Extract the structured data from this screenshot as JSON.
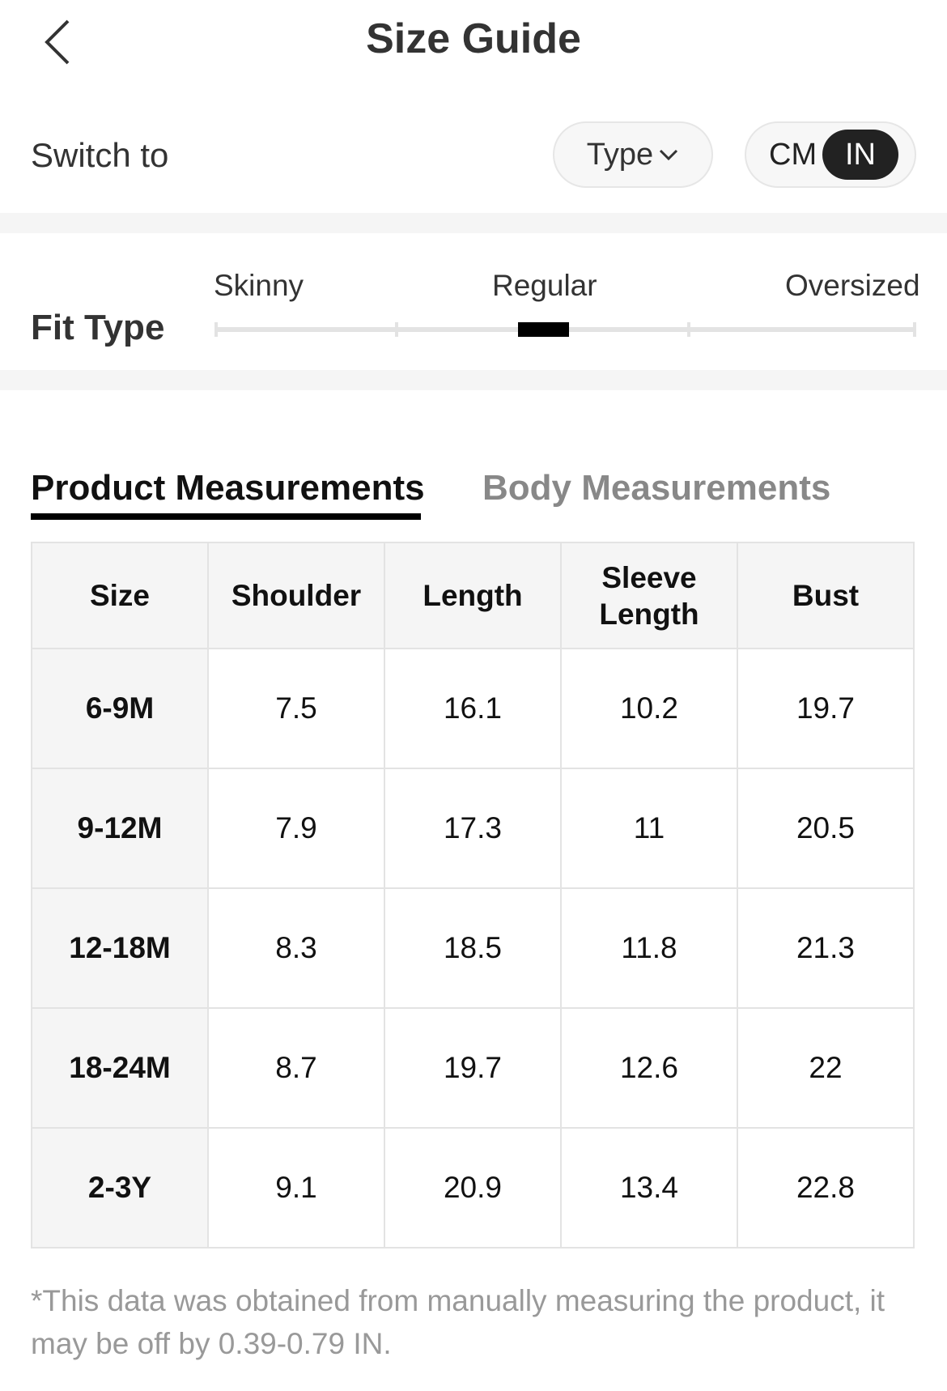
{
  "header": {
    "title": "Size Guide",
    "back_icon": "chevron-left-icon"
  },
  "switch": {
    "label": "Switch to",
    "type_label": "Type",
    "type_icon": "chevron-down-icon",
    "unit_options": [
      "CM",
      "IN"
    ],
    "unit_selected": "IN"
  },
  "fit": {
    "label": "Fit Type",
    "options": [
      "Skinny",
      "Regular",
      "Oversized"
    ],
    "selected": "Regular"
  },
  "tabs": [
    {
      "label": "Product Measurements",
      "active": true
    },
    {
      "label": "Body Measurements",
      "active": false
    }
  ],
  "table": {
    "headers": [
      "Size",
      "Shoulder",
      "Length",
      "Sleeve Length",
      "Bust"
    ],
    "rows": [
      [
        "6-9M",
        "7.5",
        "16.1",
        "10.2",
        "19.7"
      ],
      [
        "9-12M",
        "7.9",
        "17.3",
        "11",
        "20.5"
      ],
      [
        "12-18M",
        "8.3",
        "18.5",
        "11.8",
        "21.3"
      ],
      [
        "18-24M",
        "8.7",
        "19.7",
        "12.6",
        "22"
      ],
      [
        "2-3Y",
        "9.1",
        "20.9",
        "13.4",
        "22.8"
      ]
    ]
  },
  "note": "*This data was obtained from manually measuring the product, it may be off by 0.39-0.79 IN."
}
